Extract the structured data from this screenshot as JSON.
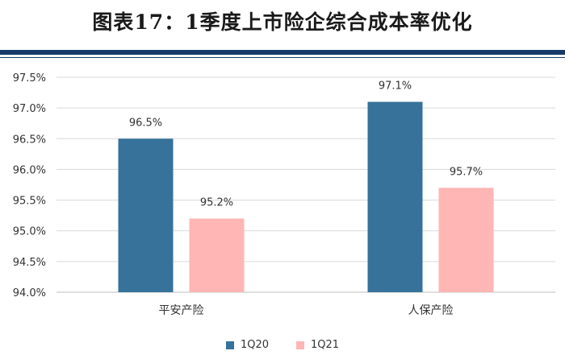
{
  "chart_data": {
    "type": "bar",
    "title": "图表17：1季度上市险企综合成本率优化",
    "categories": [
      "平安产险",
      "人保产险"
    ],
    "series": [
      {
        "name": "1Q20",
        "values": [
          96.5,
          97.1
        ],
        "labels": [
          "96.5%",
          "97.1%"
        ],
        "color": "#36729a"
      },
      {
        "name": "1Q21",
        "values": [
          95.2,
          95.7
        ],
        "labels": [
          "95.2%",
          "95.7%"
        ],
        "color": "#ffb6b4"
      }
    ],
    "ylim": [
      94.0,
      97.5
    ],
    "yticks": [
      "94.0%",
      "94.5%",
      "95.0%",
      "95.5%",
      "96.0%",
      "96.5%",
      "97.0%",
      "97.5%"
    ],
    "ytick_values": [
      94.0,
      94.5,
      95.0,
      95.5,
      96.0,
      96.5,
      97.0,
      97.5
    ],
    "grid": true,
    "legend_position": "bottom"
  }
}
